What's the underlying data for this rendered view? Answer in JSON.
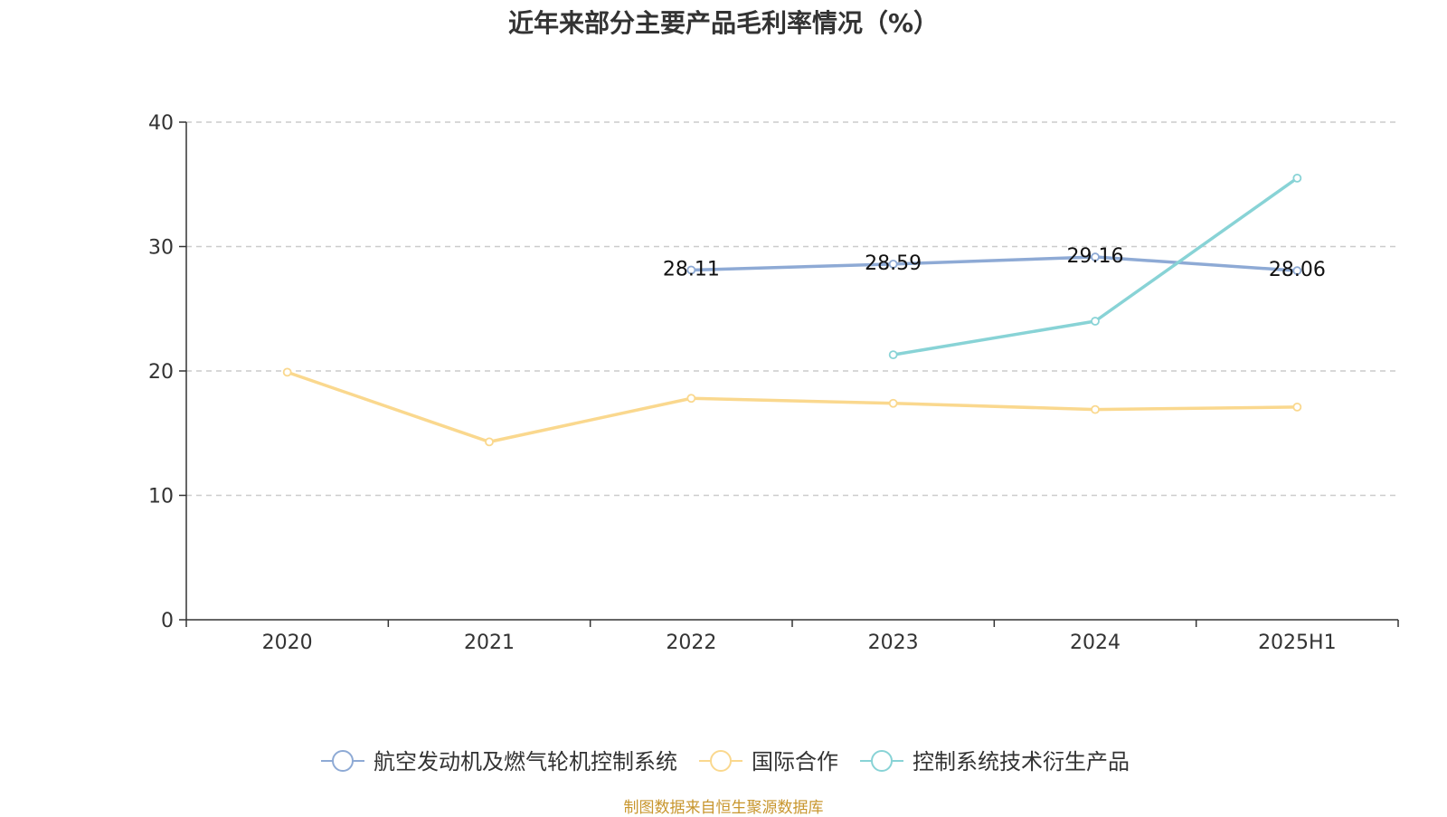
{
  "colors": {
    "series1": "#8eaad5",
    "series2": "#fad88e",
    "series3": "#88d3d6",
    "source_text": "#c8962e",
    "grid": "#cccccc",
    "axis": "#333333"
  },
  "chart_data": {
    "type": "line",
    "title": "近年来部分主要产品毛利率情况（%）",
    "xlabel": "",
    "ylabel": "",
    "categories": [
      "2020",
      "2021",
      "2022",
      "2023",
      "2024",
      "2025H1"
    ],
    "ylim": [
      0,
      40
    ],
    "yticks": [
      0,
      10,
      20,
      30,
      40
    ],
    "grid": true,
    "legend_position": "bottom-center",
    "series": [
      {
        "name": "航空发动机及燃气轮机控制系统",
        "values": [
          null,
          null,
          28.11,
          28.59,
          29.16,
          28.06
        ],
        "labels_shown": true
      },
      {
        "name": "国际合作",
        "values": [
          19.9,
          14.3,
          17.8,
          17.4,
          16.9,
          17.1
        ],
        "labels_shown": false
      },
      {
        "name": "控制系统技术衍生产品",
        "values": [
          null,
          null,
          null,
          21.3,
          24.0,
          35.5
        ],
        "labels_shown": false
      }
    ]
  },
  "footer": {
    "source": "制图数据来自恒生聚源数据库"
  }
}
